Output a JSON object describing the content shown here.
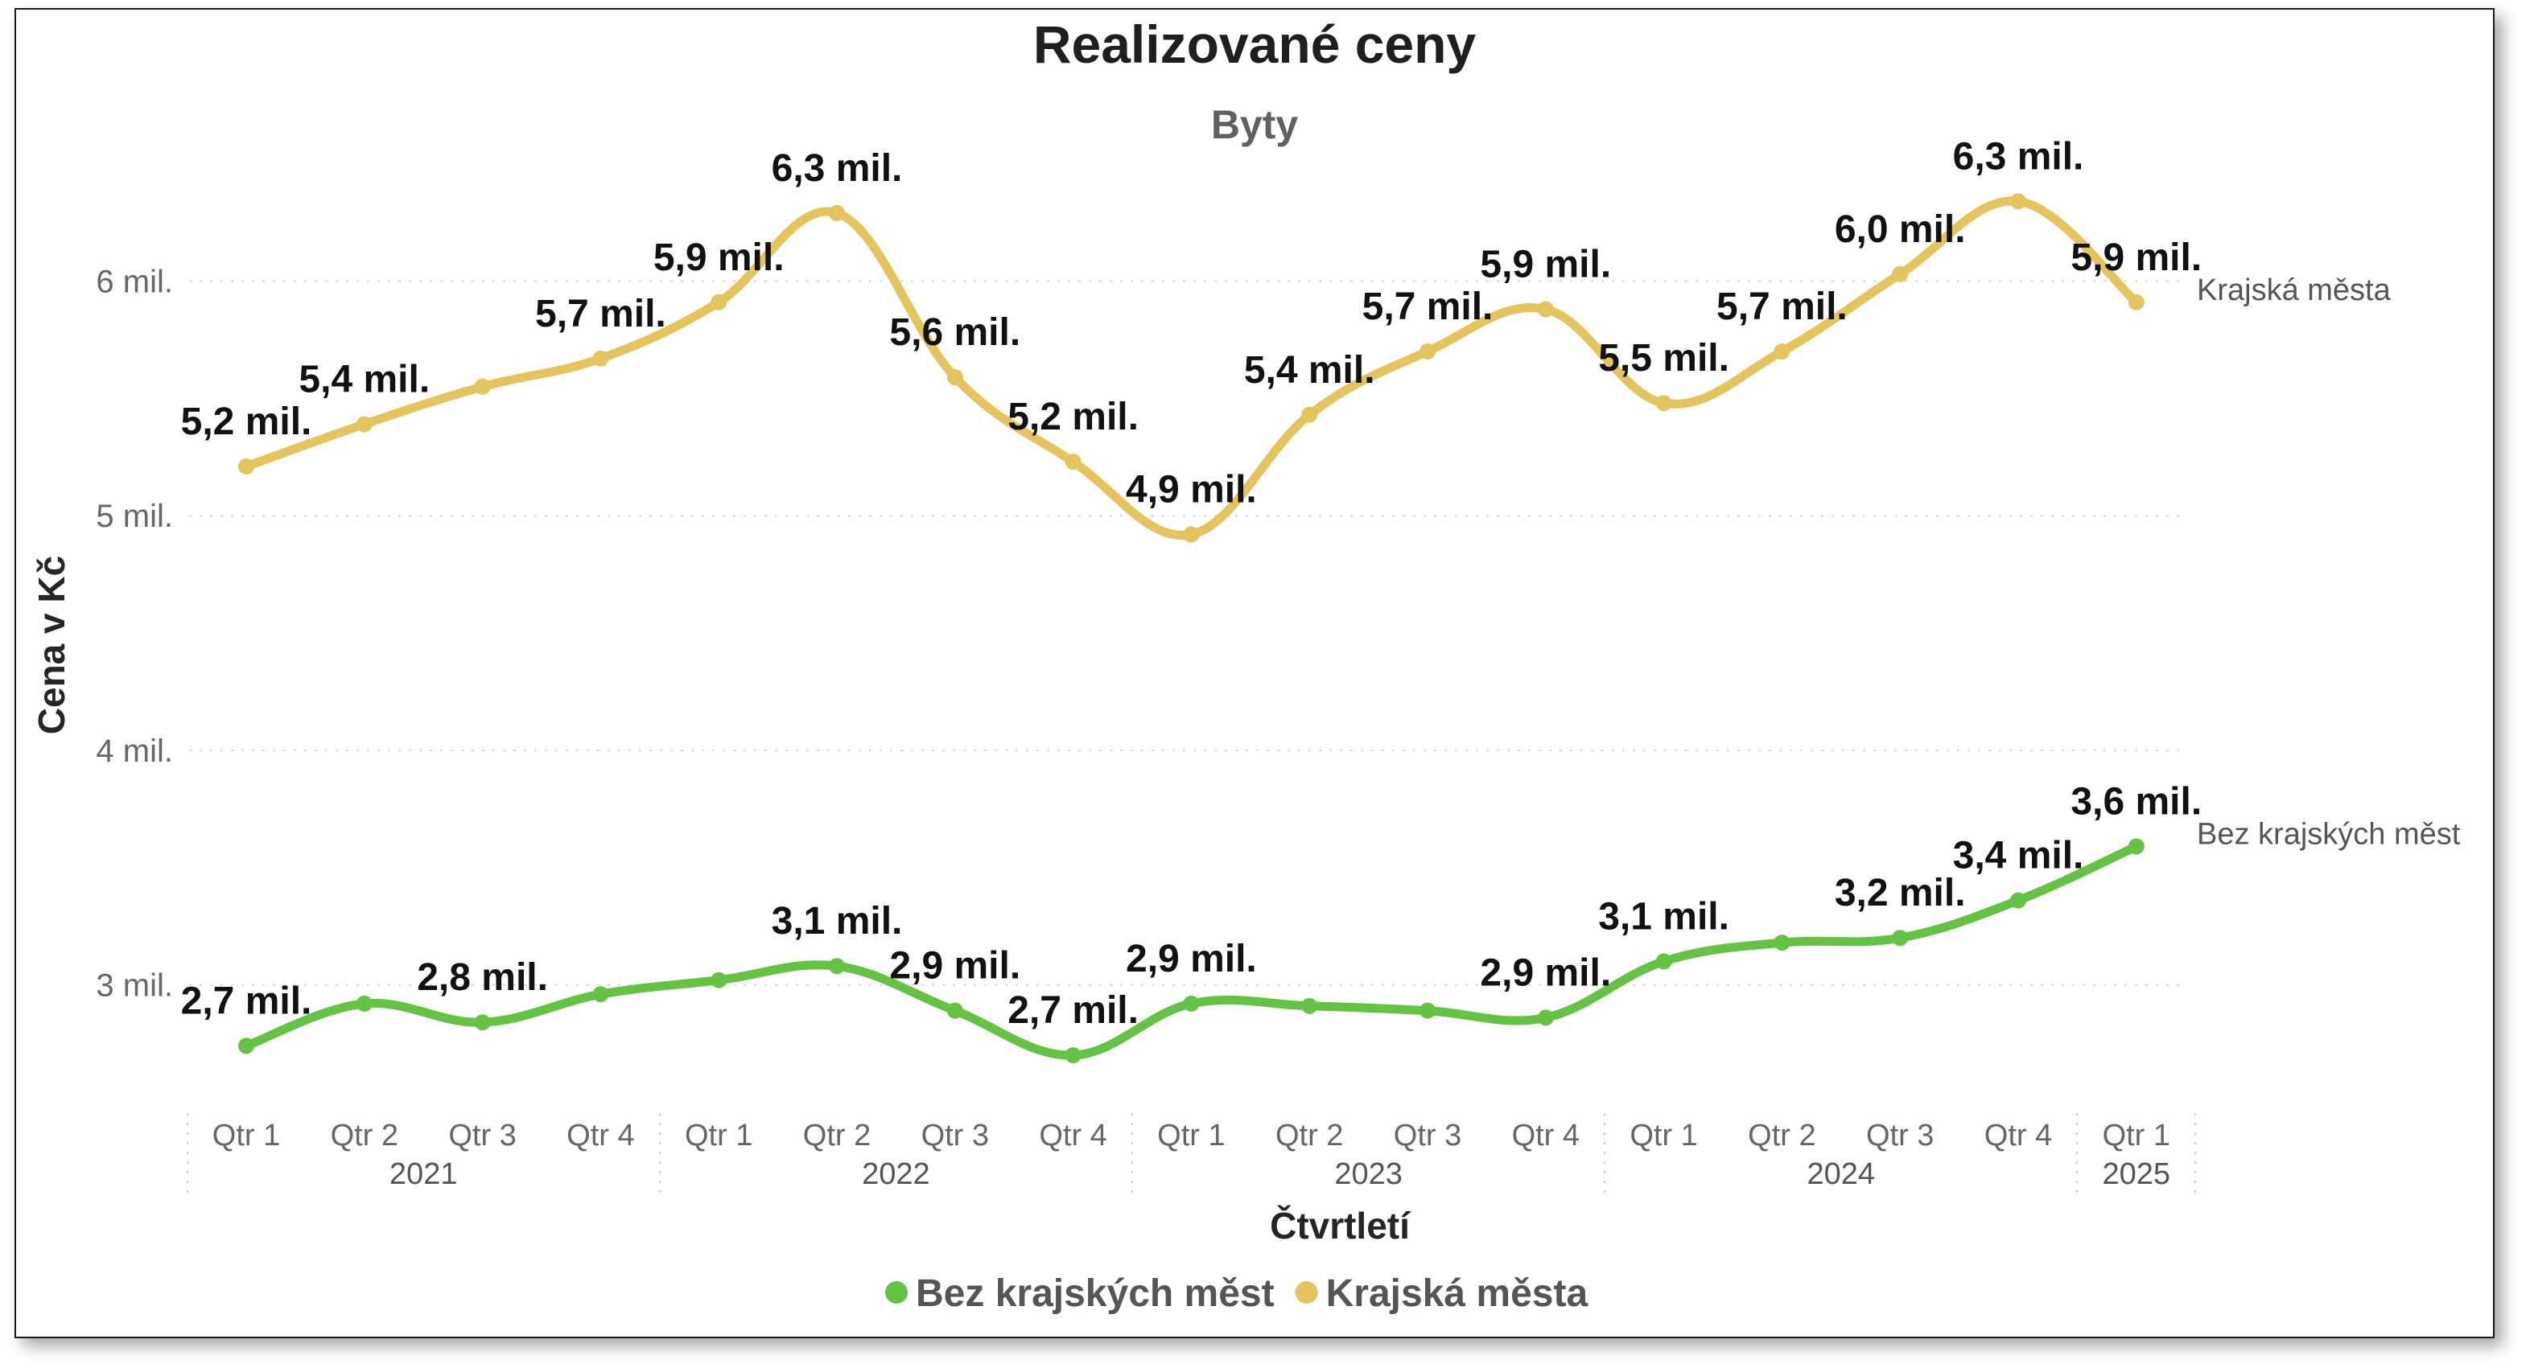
{
  "chart_data": {
    "type": "line",
    "title": "Realizované ceny",
    "subtitle": "Byty",
    "ylabel": "Cena v Kč",
    "xlabel": "Čtvrtletí",
    "ylim": [
      2.45,
      6.9
    ],
    "yticks": [
      {
        "value": 3,
        "label": "3 mil."
      },
      {
        "value": 4,
        "label": "4 mil."
      },
      {
        "value": 5,
        "label": "5 mil."
      },
      {
        "value": 6,
        "label": "6 mil."
      }
    ],
    "categories": [
      "Qtr 1",
      "Qtr 2",
      "Qtr 3",
      "Qtr 4",
      "Qtr 1",
      "Qtr 2",
      "Qtr 3",
      "Qtr 4",
      "Qtr 1",
      "Qtr 2",
      "Qtr 3",
      "Qtr 4",
      "Qtr 1",
      "Qtr 2",
      "Qtr 3",
      "Qtr 4",
      "Qtr 1"
    ],
    "years": [
      {
        "label": "2021",
        "from": 0,
        "to": 3
      },
      {
        "label": "2022",
        "from": 4,
        "to": 7
      },
      {
        "label": "2023",
        "from": 8,
        "to": 11
      },
      {
        "label": "2024",
        "from": 12,
        "to": 15
      },
      {
        "label": "2025",
        "from": 16,
        "to": 16
      }
    ],
    "legend_position": "bottom-center",
    "grid": true,
    "series": [
      {
        "name": "Bez krajských měst",
        "color": "#66c244",
        "values": [
          2.74,
          2.92,
          2.84,
          2.96,
          3.02,
          3.08,
          2.89,
          2.7,
          2.92,
          2.91,
          2.89,
          2.86,
          3.1,
          3.18,
          3.2,
          3.36,
          3.59
        ],
        "labels": [
          "2,7 mil.",
          "",
          "2,8 mil.",
          "",
          "",
          "3,1 mil.",
          "2,9 mil.",
          "2,7 mil.",
          "2,9 mil.",
          "",
          "",
          "2,9 mil.",
          "3,1 mil.",
          "",
          "3,2 mil.",
          "3,4 mil.",
          "3,6 mil."
        ]
      },
      {
        "name": "Krajská města",
        "color": "#e3c45e",
        "values": [
          5.21,
          5.39,
          5.55,
          5.67,
          5.91,
          6.29,
          5.59,
          5.23,
          4.92,
          5.43,
          5.7,
          5.88,
          5.48,
          5.7,
          6.03,
          6.34,
          5.91
        ],
        "labels": [
          "5,2 mil.",
          "5,4 mil.",
          "",
          "5,7 mil.",
          "5,9 mil.",
          "6,3 mil.",
          "5,6 mil.",
          "5,2 mil.",
          "4,9 mil.",
          "5,4 mil.",
          "5,7 mil.",
          "5,9 mil.",
          "5,5 mil.",
          "5,7 mil.",
          "6,0 mil.",
          "6,3 mil.",
          "5,9 mil."
        ]
      }
    ]
  }
}
